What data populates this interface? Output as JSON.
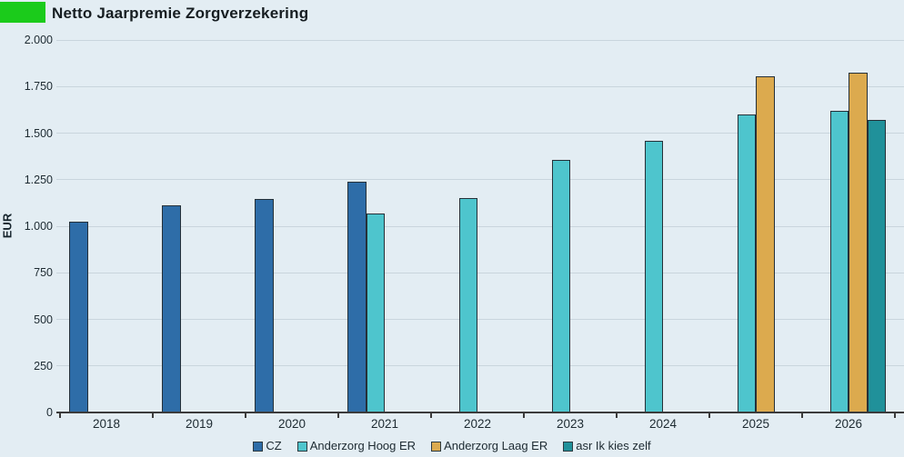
{
  "chart_data": {
    "type": "bar",
    "title": "Netto Jaarpremie Zorgverzekering",
    "xlabel": "",
    "ylabel": "EUR",
    "ylim": [
      0,
      2000
    ],
    "ytick_interval": 250,
    "ytick_labels": [
      "0",
      "250",
      "500",
      "750",
      "1.000",
      "1.250",
      "1.500",
      "1.750",
      "2.000"
    ],
    "grid": true,
    "legend_position": "bottom",
    "categories": [
      "2018",
      "2019",
      "2020",
      "2021",
      "2022",
      "2023",
      "2024",
      "2025",
      "2026"
    ],
    "series": [
      {
        "name": "CZ",
        "color": "#2e6da8",
        "values": [
          1024,
          1110,
          1146,
          1238,
          null,
          null,
          null,
          null,
          null
        ]
      },
      {
        "name": "Anderzorg Hoog ER",
        "color": "#4ec5cd",
        "values": [
          null,
          null,
          null,
          1066,
          1150,
          1355,
          1460,
          1598,
          1620
        ]
      },
      {
        "name": "Anderzorg Laag ER",
        "color": "#dcaa4e",
        "values": [
          null,
          null,
          null,
          null,
          null,
          null,
          null,
          1804,
          1822
        ]
      },
      {
        "name": "asr Ik kies zelf",
        "color": "#20919a",
        "values": [
          null,
          null,
          null,
          null,
          null,
          null,
          null,
          null,
          1570
        ]
      }
    ]
  },
  "style_colors": {
    "background": "#e3edf3",
    "brand_green": "#1bcb1b",
    "gridline": "#c9d5dd",
    "axis": "#3b3b3b",
    "bar_border": "#253038",
    "text": "#1d2a31"
  }
}
